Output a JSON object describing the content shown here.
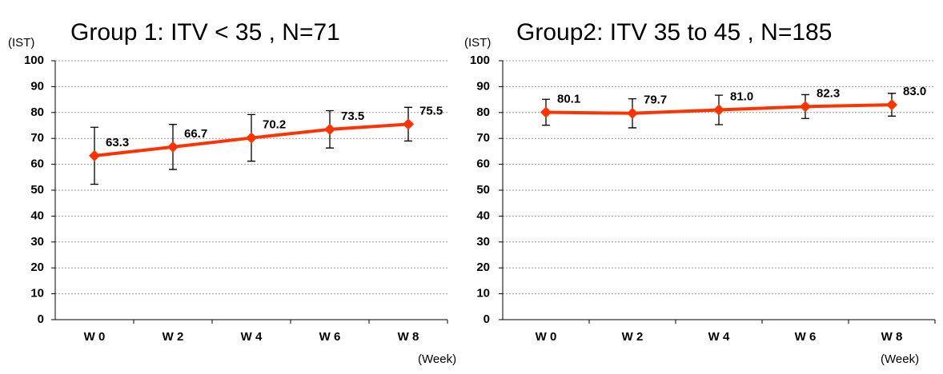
{
  "chart_data": [
    {
      "type": "line",
      "title": "Group 1: ITV < 35 , N=71",
      "y_label": "(IST)",
      "x_label": "(Week)",
      "categories": [
        "W 0",
        "W 2",
        "W 4",
        "W 6",
        "W 8"
      ],
      "series": [
        {
          "color": "#ff3300",
          "values": [
            63.3,
            66.7,
            70.2,
            73.5,
            75.5
          ],
          "errors": [
            11,
            8.7,
            9,
            7.2,
            6.5
          ],
          "value_labels": [
            "63.3",
            "66.7",
            "70.2",
            "73.5",
            "75.5"
          ]
        }
      ],
      "ylim": [
        0,
        100
      ],
      "yticks": [
        0,
        10,
        20,
        30,
        40,
        50,
        60,
        70,
        80,
        90,
        100
      ],
      "grid": true
    },
    {
      "type": "line",
      "title": "Group2: ITV 35 to 45 , N=185",
      "y_label": "(IST)",
      "x_label": "(Week)",
      "categories": [
        "W 0",
        "W 2",
        "W 4",
        "W 6",
        "W 8"
      ],
      "series": [
        {
          "color": "#ff3300",
          "values": [
            80.1,
            79.7,
            81.0,
            82.3,
            83.0
          ],
          "errors": [
            5,
            5.6,
            5.7,
            4.6,
            4.4
          ],
          "value_labels": [
            "80.1",
            "79.7",
            "81.0",
            "82.3",
            "83.0"
          ]
        }
      ],
      "ylim": [
        0,
        100
      ],
      "yticks": [
        0,
        10,
        20,
        30,
        40,
        50,
        60,
        70,
        80,
        90,
        100
      ],
      "grid": true
    }
  ]
}
